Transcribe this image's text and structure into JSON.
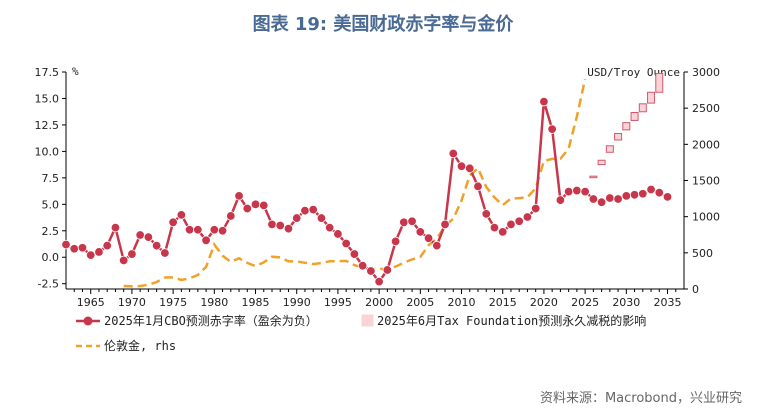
{
  "chart_data": {
    "type": "line",
    "title": "图表 19: 美国财政赤字率与金价",
    "source": "资料来源：Macrobond，兴业研究",
    "left_unit": "%",
    "right_unit": "USD/Troy Ounce",
    "x_ticks": [
      1965,
      1970,
      1975,
      1980,
      1985,
      1990,
      1995,
      2000,
      2005,
      2010,
      2015,
      2020,
      2025,
      2030,
      2035
    ],
    "left_ticks": [
      -2.5,
      0.0,
      2.5,
      5.0,
      7.5,
      10.0,
      12.5,
      15.0,
      17.5
    ],
    "right_ticks": [
      0,
      500,
      1000,
      1500,
      2000,
      2500,
      3000
    ],
    "xlim": [
      1962,
      2037
    ],
    "left_ylim": [
      -3.0,
      17.5
    ],
    "right_ylim": [
      0,
      3000
    ],
    "colors": {
      "deficit": "#c8364b",
      "gold": "#f0a12a",
      "tax_fill": "#f9d3d8",
      "tax_stroke": "#d05a6a",
      "axis": "#000000",
      "title": "#4a6a93"
    },
    "legend": {
      "deficit": "2025年1月CBO预测赤字率（盈余为负）",
      "tax": "2025年6月Tax Foundation预测永久减税的影响",
      "gold": "伦敦金, rhs"
    },
    "series": [
      {
        "name": "2025年1月CBO预测赤字率（盈余为负）",
        "axis": "left",
        "x": [
          1962,
          1963,
          1964,
          1965,
          1966,
          1967,
          1968,
          1969,
          1970,
          1971,
          1972,
          1973,
          1974,
          1975,
          1976,
          1977,
          1978,
          1979,
          1980,
          1981,
          1982,
          1983,
          1984,
          1985,
          1986,
          1987,
          1988,
          1989,
          1990,
          1991,
          1992,
          1993,
          1994,
          1995,
          1996,
          1997,
          1998,
          1999,
          2000,
          2001,
          2002,
          2003,
          2004,
          2005,
          2006,
          2007,
          2008,
          2009,
          2010,
          2011,
          2012,
          2013,
          2014,
          2015,
          2016,
          2017,
          2018,
          2019,
          2020,
          2021,
          2022,
          2023,
          2024,
          2025,
          2026,
          2027,
          2028,
          2029,
          2030,
          2031,
          2032,
          2033,
          2034,
          2035
        ],
        "values": [
          1.2,
          0.8,
          0.9,
          0.2,
          0.5,
          1.1,
          2.8,
          -0.3,
          0.3,
          2.1,
          1.9,
          1.1,
          0.4,
          3.3,
          4.0,
          2.6,
          2.6,
          1.6,
          2.6,
          2.5,
          3.9,
          5.8,
          4.6,
          5.0,
          4.9,
          3.1,
          3.0,
          2.7,
          3.7,
          4.4,
          4.5,
          3.7,
          2.8,
          2.2,
          1.3,
          0.3,
          -0.8,
          -1.3,
          -2.3,
          -1.2,
          1.5,
          3.3,
          3.4,
          2.4,
          1.8,
          1.1,
          3.1,
          9.8,
          8.6,
          8.4,
          6.7,
          4.1,
          2.8,
          2.4,
          3.1,
          3.4,
          3.8,
          4.6,
          14.7,
          12.1,
          5.4,
          6.2,
          6.3,
          6.2,
          5.5,
          5.2,
          5.6,
          5.5,
          5.8,
          5.9,
          6.0,
          6.4,
          6.1,
          5.7
        ]
      },
      {
        "name": "2025年6月Tax Foundation预测永久减税的影响",
        "axis": "right",
        "type": "floating-bar",
        "x": [
          2026,
          2027,
          2028,
          2029,
          2030,
          2031,
          2032,
          2033,
          2034
        ],
        "low": [
          1550,
          1720,
          1890,
          2060,
          2200,
          2330,
          2450,
          2570,
          2720
        ],
        "high": [
          1560,
          1780,
          1980,
          2150,
          2300,
          2440,
          2560,
          2720,
          2980
        ]
      },
      {
        "name": "伦敦金, rhs",
        "axis": "right",
        "x": [
          1969,
          1970,
          1971,
          1972,
          1973,
          1974,
          1975,
          1976,
          1977,
          1978,
          1979,
          1980,
          1981,
          1982,
          1983,
          1984,
          1985,
          1986,
          1987,
          1988,
          1989,
          1990,
          1991,
          1992,
          1993,
          1994,
          1995,
          1996,
          1997,
          1998,
          1999,
          2000,
          2001,
          2002,
          2003,
          2004,
          2005,
          2006,
          2007,
          2008,
          2009,
          2010,
          2011,
          2012,
          2013,
          2014,
          2015,
          2016,
          2017,
          2018,
          2019,
          2020,
          2021,
          2022,
          2023,
          2024,
          2025
        ],
        "values": [
          41,
          36,
          41,
          58,
          97,
          159,
          161,
          125,
          148,
          193,
          306,
          615,
          460,
          376,
          424,
          361,
          317,
          368,
          447,
          437,
          381,
          383,
          362,
          344,
          360,
          384,
          384,
          388,
          331,
          294,
          279,
          279,
          271,
          310,
          363,
          409,
          444,
          604,
          695,
          872,
          972,
          1224,
          1571,
          1669,
          1411,
          1266,
          1160,
          1251,
          1257,
          1268,
          1393,
          1770,
          1799,
          1800,
          1940,
          2386,
          2900
        ]
      }
    ]
  }
}
